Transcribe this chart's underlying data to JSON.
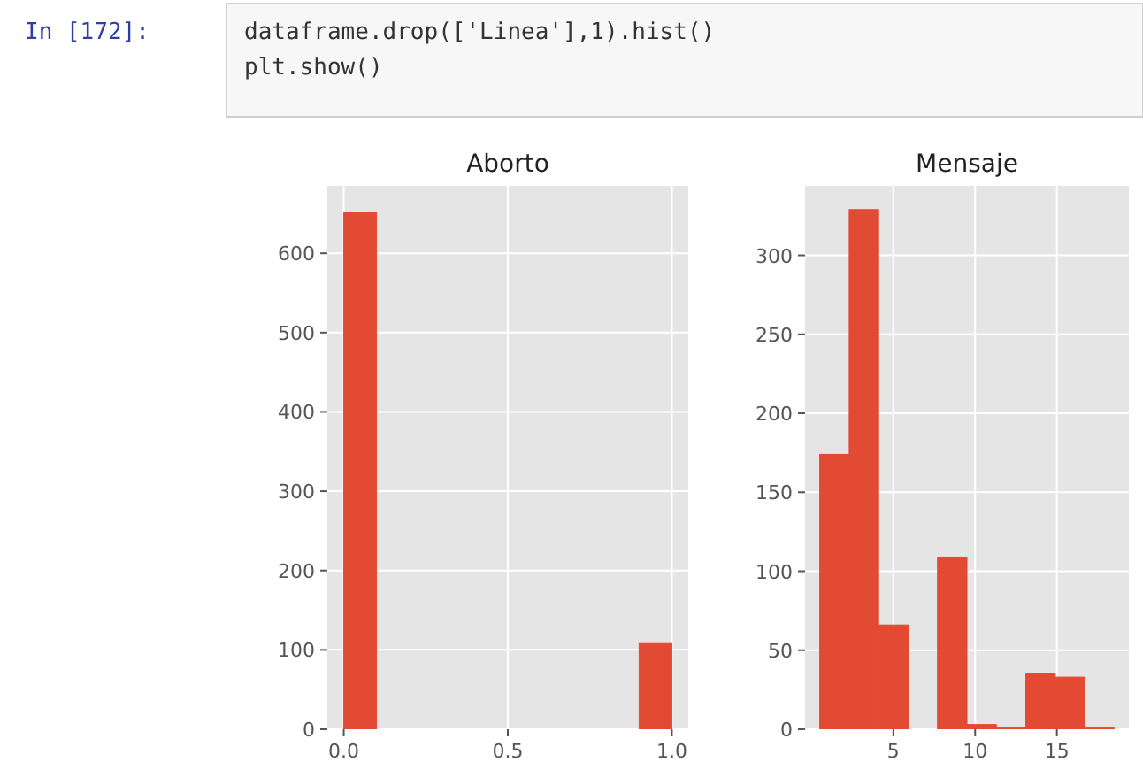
{
  "chart_data": [
    {
      "type": "histogram",
      "title": "Aborto",
      "bins": [
        0,
        0.1,
        0.2,
        0.3,
        0.4,
        0.5,
        0.6,
        0.7,
        0.8,
        0.9,
        1.0
      ],
      "values": [
        652,
        0,
        0,
        0,
        0,
        0,
        0,
        0,
        0,
        108
      ],
      "color": "#e24a33",
      "xlim": [
        -0.05,
        1.05
      ],
      "ylim": [
        0,
        685
      ],
      "xticks": [
        {
          "value": 0,
          "label": "0.0"
        },
        {
          "value": 0.5,
          "label": "0.5"
        },
        {
          "value": 1,
          "label": "1.0"
        }
      ],
      "yticks": [
        0,
        100,
        200,
        300,
        400,
        500,
        600
      ],
      "grid": true,
      "annotations": [
        "In [172]:",
        "dataframe.drop(['Linea'],1).hist()",
        "plt.show()"
      ]
    },
    {
      "type": "histogram",
      "title": "Mensaje",
      "bins": [
        0.5,
        2.3,
        4.1,
        5.9,
        7.7,
        9.5,
        11.3,
        13.1,
        14.9,
        16.7,
        18.5
      ],
      "values": [
        174,
        329,
        66,
        0,
        109,
        3,
        1,
        35,
        33,
        1
      ],
      "color": "#e24a33",
      "xlim": [
        -0.4,
        19.4
      ],
      "ylim": [
        0,
        344
      ],
      "xticks": [
        5,
        10,
        15
      ],
      "yticks": [
        0,
        50,
        100,
        150,
        200,
        250,
        300
      ],
      "grid": true
    }
  ]
}
